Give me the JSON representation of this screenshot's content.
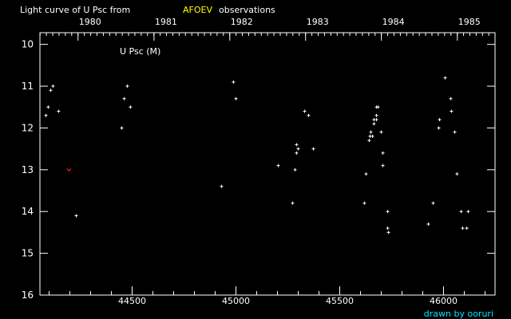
{
  "chart_data": {
    "type": "scatter",
    "title": {
      "prefix": "Light curve of U Psc from",
      "source": "AFOEV",
      "suffix": "observations"
    },
    "series_label": "U Psc (M)",
    "credit": "drawn by ooruri",
    "xlabel": "",
    "ylabel": "",
    "x_range": [
      44056,
      46248
    ],
    "y_range": [
      9.72,
      16
    ],
    "y_inverted": true,
    "x_ticks": [
      44500,
      45000,
      45500,
      46000
    ],
    "x_tick_labels": [
      "44500",
      "45000",
      "45500",
      "46000"
    ],
    "y_ticks": [
      10,
      11,
      12,
      13,
      14,
      15,
      16
    ],
    "y_tick_labels": [
      "10",
      "11",
      "12",
      "13",
      "14",
      "15",
      "16"
    ],
    "year_ticks": [
      {
        "label": "1980",
        "jd": 44239.5
      },
      {
        "label": "1981",
        "jd": 44605.5
      },
      {
        "label": "1982",
        "jd": 44970.5
      },
      {
        "label": "1983",
        "jd": 45335.5
      },
      {
        "label": "1984",
        "jd": 45700.5
      },
      {
        "label": "1985",
        "jd": 46066.5
      }
    ],
    "grid": false,
    "colors": {
      "background": "#000000",
      "axes": "#ffffff",
      "points": "#ffffff",
      "limit": "#ff2020",
      "source": "#ffff00",
      "credit": "#00e5ff"
    },
    "observations": [
      [
        44085,
        11.7
      ],
      [
        44096,
        11.5
      ],
      [
        44108,
        11.1
      ],
      [
        44119,
        11.0
      ],
      [
        44146,
        11.6
      ],
      [
        44231,
        14.1
      ],
      [
        44450,
        12.0
      ],
      [
        44462,
        11.3
      ],
      [
        44477,
        11.0
      ],
      [
        44492,
        11.5
      ],
      [
        44931,
        13.4
      ],
      [
        44988,
        10.9
      ],
      [
        45000,
        11.3
      ],
      [
        45204,
        12.9
      ],
      [
        45273,
        13.8
      ],
      [
        45285,
        13.0
      ],
      [
        45292,
        12.4
      ],
      [
        45300,
        12.5
      ],
      [
        45292,
        12.6
      ],
      [
        45331,
        11.6
      ],
      [
        45350,
        11.7
      ],
      [
        45373,
        12.5
      ],
      [
        45619,
        13.8
      ],
      [
        45627,
        13.1
      ],
      [
        45642,
        12.3
      ],
      [
        45646,
        12.2
      ],
      [
        45658,
        12.2
      ],
      [
        45650,
        12.1
      ],
      [
        45665,
        11.9
      ],
      [
        45665,
        11.8
      ],
      [
        45677,
        11.8
      ],
      [
        45677,
        11.7
      ],
      [
        45677,
        11.5
      ],
      [
        45685,
        11.5
      ],
      [
        45700,
        12.1
      ],
      [
        45708,
        12.6
      ],
      [
        45708,
        12.9
      ],
      [
        45731,
        14.0
      ],
      [
        45731,
        14.4
      ],
      [
        45735,
        14.5
      ],
      [
        45927,
        14.3
      ],
      [
        45950,
        13.8
      ],
      [
        45977,
        12.0
      ],
      [
        45981,
        11.8
      ],
      [
        46008,
        10.8
      ],
      [
        46035,
        11.3
      ],
      [
        46038,
        11.6
      ],
      [
        46054,
        12.1
      ],
      [
        46065,
        13.1
      ],
      [
        46085,
        14.0
      ],
      [
        46092,
        14.4
      ],
      [
        46112,
        14.4
      ],
      [
        46119,
        14.0
      ]
    ],
    "limits": [
      [
        44196,
        13.0
      ]
    ]
  }
}
